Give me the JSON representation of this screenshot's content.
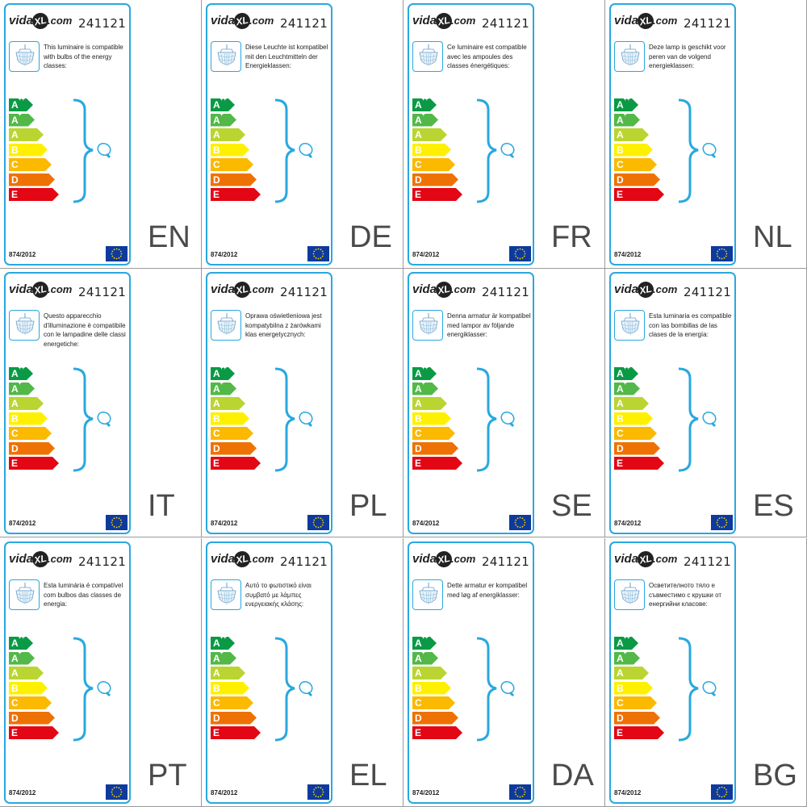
{
  "brand": {
    "logo_left": "vida",
    "logo_mid": "XL",
    "logo_right": ".com"
  },
  "product_code": "241121",
  "regulation": "874/2012",
  "icons": {
    "lamp": "chandelier-icon",
    "bulb": "bulb-icon",
    "flag": "eu-flag-icon"
  },
  "energy_classes": [
    {
      "label": "A",
      "sup": "++",
      "color": "#0a9a45"
    },
    {
      "label": "A",
      "sup": "+",
      "color": "#52b848"
    },
    {
      "label": "A",
      "sup": "",
      "color": "#bad531"
    },
    {
      "label": "B",
      "sup": "",
      "color": "#fff000"
    },
    {
      "label": "C",
      "sup": "",
      "color": "#fbb900"
    },
    {
      "label": "D",
      "sup": "",
      "color": "#ee7203"
    },
    {
      "label": "E",
      "sup": "",
      "color": "#e30614"
    }
  ],
  "accent_color": "#29a8df",
  "labels": [
    {
      "lang": "EN",
      "text": "This luminaire is compatible with bulbs of the energy classes:"
    },
    {
      "lang": "DE",
      "text": "Diese Leuchte ist kompatibel mit den Leuchtmitteln der Energieklassen:"
    },
    {
      "lang": "FR",
      "text": "Ce luminaire est compatible avec les ampoules des classes énergétiques:"
    },
    {
      "lang": "NL",
      "text": "Deze lamp is geschikt voor peren van de volgend energieklassen:"
    },
    {
      "lang": "IT",
      "text": "Questo apparecchio d'illuminazione è compatibile con le lampadine delle classi energetiche:"
    },
    {
      "lang": "PL",
      "text": "Oprawa oświetleniowa jest kompatybilna z żarówkami klas energetycznych:"
    },
    {
      "lang": "SE",
      "text": "Denna armatur är kompatibel med lampor av följande energiklasser:"
    },
    {
      "lang": "ES",
      "text": "Esta luminaria es compatible con las bombillas de las clases de la energía:"
    },
    {
      "lang": "PT",
      "text": "Esta luminária é compatível com bulbos das classes de energia:"
    },
    {
      "lang": "EL",
      "text": "Αυτό το φωτιστικό είναι συμβατό με λάμπες ενεργειακής κλάσης:"
    },
    {
      "lang": "DA",
      "text": "Dette armatur er kompatibel med løg af energiklasser:"
    },
    {
      "lang": "BG",
      "text": "Осветителното тяло е съвместимо с крушки от енергийни класове:"
    }
  ]
}
